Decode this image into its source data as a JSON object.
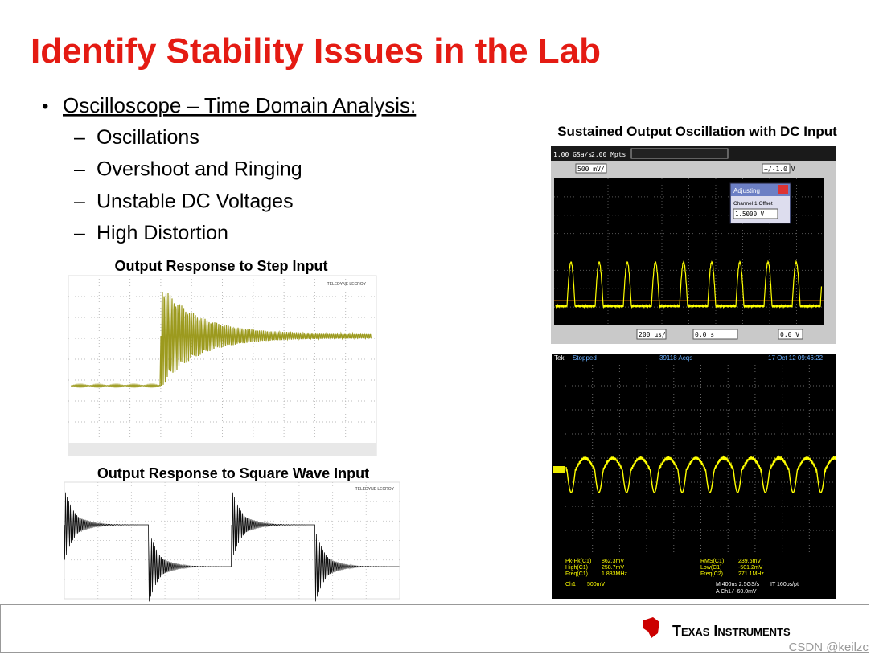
{
  "title": "Identify Stability Issues in the Lab",
  "bullet": {
    "text": "Oscilloscope – Time Domain Analysis:",
    "items": [
      "Oscillations",
      "Overshoot and Ringing",
      "Unstable DC Voltages",
      "High Distortion"
    ]
  },
  "left_panels": [
    {
      "caption": "Output Response to Step Input",
      "logo": "TELEDYNE LECROY"
    },
    {
      "caption": "Output Response to Square Wave Input",
      "logo": "TELEDYNE LECROY"
    }
  ],
  "right_panel": {
    "caption": "Sustained Output Oscillation with DC Input",
    "scope1": {
      "rate": "1.00 GSa/s",
      "points": "2.00 Mpts",
      "volts": "500 mV/",
      "offset_range": "+/-1.0 V",
      "dialog_title": "Adjusting",
      "dialog_label": "Channel 1 Offset",
      "dialog_value": "1.5000 V",
      "timebase": "200 µs/",
      "delay": "0.0 s",
      "trigger": "0.0 V"
    },
    "scope2": {
      "brand": "Tek",
      "state": "Stopped",
      "acqs": "39118 Acqs",
      "date": "17 Oct 12 09:46:22",
      "measurements": [
        [
          "Pk-Pk(C1)",
          "862.3mV",
          "RMS(C1)",
          "239.6mV"
        ],
        [
          "High(C1)",
          "258.7mV",
          "Low(C1)",
          "-501.2mV"
        ],
        [
          "Freq(C1)",
          "1.833MHz",
          "Freq(C2)",
          "271.1MHz"
        ]
      ],
      "channel": "Ch1",
      "channel_scale": "500mV",
      "horizontal": "M 400ns 2.5GS/s",
      "resolution": "IT 160ps/pt",
      "trigger": "A Ch1 ⁄ -60.0mV"
    }
  },
  "footer": {
    "company": "Texas Instruments",
    "watermark": "CSDN @keilzc"
  }
}
